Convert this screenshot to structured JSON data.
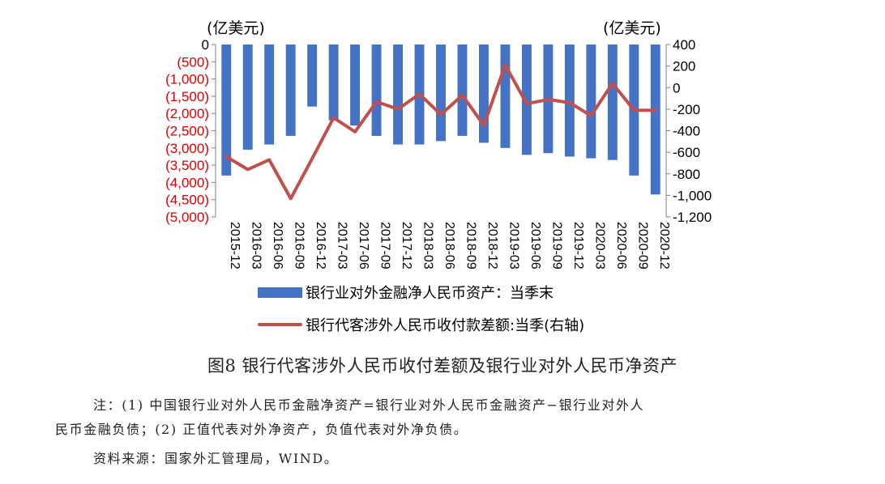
{
  "chart_data": {
    "type": "bar+line",
    "left_axis_unit": "(亿美元)",
    "right_axis_unit": "(亿美元)",
    "categories": [
      "2015-12",
      "2016-03",
      "2016-06",
      "2016-09",
      "2016-12",
      "2017-03",
      "2017-06",
      "2017-09",
      "2017-12",
      "2018-03",
      "2018-06",
      "2018-09",
      "2018-12",
      "2019-03",
      "2019-06",
      "2019-09",
      "2019-12",
      "2020-03",
      "2020-06",
      "2020-09",
      "2020-12"
    ],
    "series": [
      {
        "name": "银行业对外金融净人民币资产：当季末",
        "axis": "left",
        "type": "bar",
        "color": "#4472C4",
        "values": [
          -3800,
          -3050,
          -2900,
          -2650,
          -1800,
          -2200,
          -2350,
          -2650,
          -2900,
          -2900,
          -2800,
          -2650,
          -2850,
          -3000,
          -3200,
          -3150,
          -3250,
          -3300,
          -3350,
          -3800,
          -4350
        ]
      },
      {
        "name": "银行代客涉外人民币收付款差额:当季(右轴)",
        "axis": "right",
        "type": "line",
        "color": "#C0504D",
        "values": [
          -640,
          -760,
          -670,
          -1030,
          -660,
          -280,
          -410,
          -130,
          -200,
          -60,
          -250,
          -70,
          -350,
          210,
          -150,
          -110,
          -140,
          -260,
          40,
          -210,
          -210
        ]
      }
    ],
    "left_axis": {
      "ylim": [
        -5000,
        0
      ],
      "ticks": [
        0,
        -500,
        -1000,
        -1500,
        -2000,
        -2500,
        -3000,
        -3500,
        -4000,
        -4500,
        -5000
      ],
      "tick_labels": [
        "0",
        "(500)",
        "(1,000)",
        "(1,500)",
        "(2,000)",
        "(2,500)",
        "(3,000)",
        "(3,500)",
        "(4,000)",
        "(4,500)",
        "(5,000)"
      ],
      "tick_color": "#E00000"
    },
    "right_axis": {
      "ylim": [
        -1200,
        400
      ],
      "ticks": [
        400,
        200,
        0,
        -200,
        -400,
        -600,
        -800,
        -1000,
        -1200
      ],
      "tick_labels": [
        "400",
        "200",
        "0",
        "-200",
        "-400",
        "-600",
        "-800",
        "-1,000",
        "-1,200"
      ]
    },
    "grid": false,
    "legend_position": "bottom"
  },
  "caption": "图8  银行代客涉外人民币收付差额及银行业对外人民币净资产",
  "notes": {
    "line1": "注：(1) 中国银行业对外人民币金融净资产=银行业对外人民币金融资产−银行业对外人",
    "line2": "民币金融负债；(2) 正值代表对外净资产，负值代表对外净负债。",
    "source": "资料来源：国家外汇管理局，WIND。"
  }
}
